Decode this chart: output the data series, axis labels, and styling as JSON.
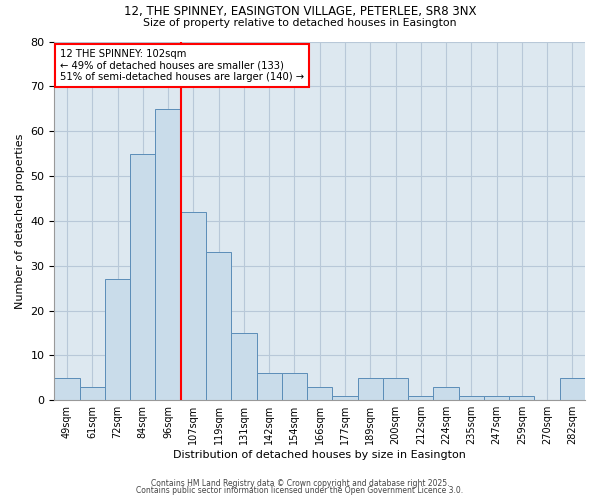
{
  "title1": "12, THE SPINNEY, EASINGTON VILLAGE, PETERLEE, SR8 3NX",
  "title2": "Size of property relative to detached houses in Easington",
  "xlabel": "Distribution of detached houses by size in Easington",
  "ylabel": "Number of detached properties",
  "bin_labels": [
    "49sqm",
    "61sqm",
    "72sqm",
    "84sqm",
    "96sqm",
    "107sqm",
    "119sqm",
    "131sqm",
    "142sqm",
    "154sqm",
    "166sqm",
    "177sqm",
    "189sqm",
    "200sqm",
    "212sqm",
    "224sqm",
    "235sqm",
    "247sqm",
    "259sqm",
    "270sqm",
    "282sqm"
  ],
  "bar_values": [
    5,
    3,
    27,
    55,
    65,
    42,
    33,
    15,
    6,
    6,
    3,
    1,
    5,
    5,
    1,
    3,
    1,
    1,
    1,
    0,
    5
  ],
  "bar_color": "#c9dcea",
  "bar_edge_color": "#5b8db8",
  "vline_color": "red",
  "annotation_title": "12 THE SPINNEY: 102sqm",
  "annotation_line1": "← 49% of detached houses are smaller (133)",
  "annotation_line2": "51% of semi-detached houses are larger (140) →",
  "annotation_box_color": "white",
  "annotation_box_edge": "red",
  "ylim": [
    0,
    80
  ],
  "yticks": [
    0,
    10,
    20,
    30,
    40,
    50,
    60,
    70,
    80
  ],
  "grid_color": "#b8c8d8",
  "background_color": "#dde8f0",
  "footer1": "Contains HM Land Registry data © Crown copyright and database right 2025.",
  "footer2": "Contains public sector information licensed under the Open Government Licence 3.0."
}
